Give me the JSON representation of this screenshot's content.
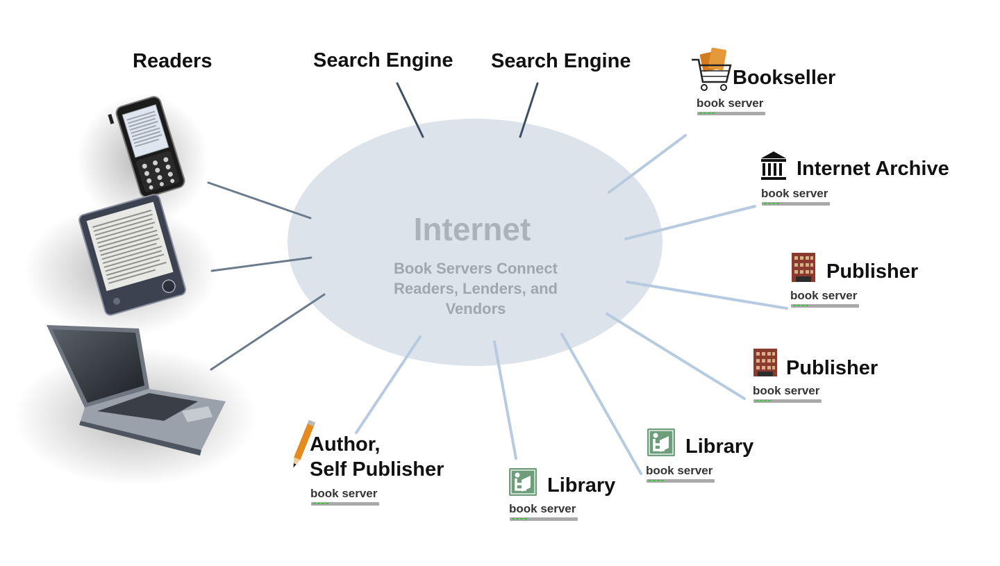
{
  "cloud": {
    "title": "Internet",
    "subtitle": "Book Servers Connect\nReaders, Lenders, and\nVendors"
  },
  "readers": {
    "label": "Readers"
  },
  "search_engines": [
    {
      "label": "Search Engine"
    },
    {
      "label": "Search Engine"
    }
  ],
  "nodes": {
    "bookseller": {
      "label": "Bookseller",
      "server": "book server",
      "icon": "shopping-cart-books-icon"
    },
    "archive": {
      "label": "Internet Archive",
      "server": "book server",
      "icon": "archive-columns-icon"
    },
    "publisher1": {
      "label": "Publisher",
      "server": "book server",
      "icon": "building-icon"
    },
    "publisher2": {
      "label": "Publisher",
      "server": "book server",
      "icon": "building-icon"
    },
    "library1": {
      "label": "Library",
      "server": "book server",
      "icon": "library-reader-icon"
    },
    "library2": {
      "label": "Library",
      "server": "book server",
      "icon": "library-reader-icon"
    },
    "author": {
      "label_line1": "Author,",
      "label_line2": "Self Publisher",
      "server": "book server",
      "icon": "pencil-icon"
    }
  },
  "devices": [
    "phone-icon",
    "ereader-icon",
    "laptop-icon"
  ],
  "colors": {
    "cloud": "#dde3eb",
    "dark_connector": "#6b7b8c",
    "light_connector": "#b7cbe0",
    "search_connector": "#3e4f63"
  }
}
